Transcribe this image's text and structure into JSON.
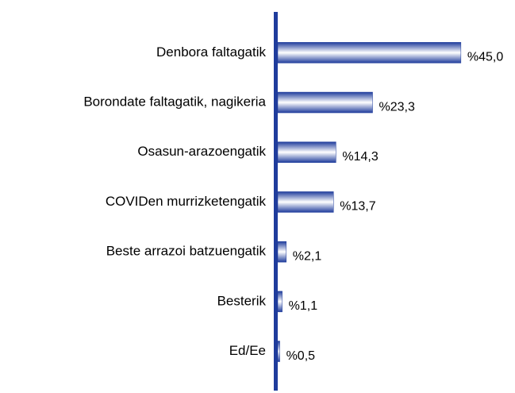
{
  "chart_data": {
    "type": "barh",
    "categories": [
      "Denbora faltagatik",
      "Borondate faltagatik, nagikeria",
      "Osasun-arazoengatik",
      "COVIDen murrizketengatik",
      "Beste arrazoi batzuengatik",
      "Besterik",
      "Ed/Ee"
    ],
    "values": [
      45.0,
      23.3,
      14.3,
      13.7,
      2.1,
      1.1,
      0.5
    ],
    "value_labels": [
      "%45,0",
      "%23,3",
      "%14,3",
      "%13,7",
      "%2,1",
      "%1,1",
      "%0,5"
    ],
    "color": "#1f3c9c",
    "xlim": [
      0,
      50
    ]
  }
}
